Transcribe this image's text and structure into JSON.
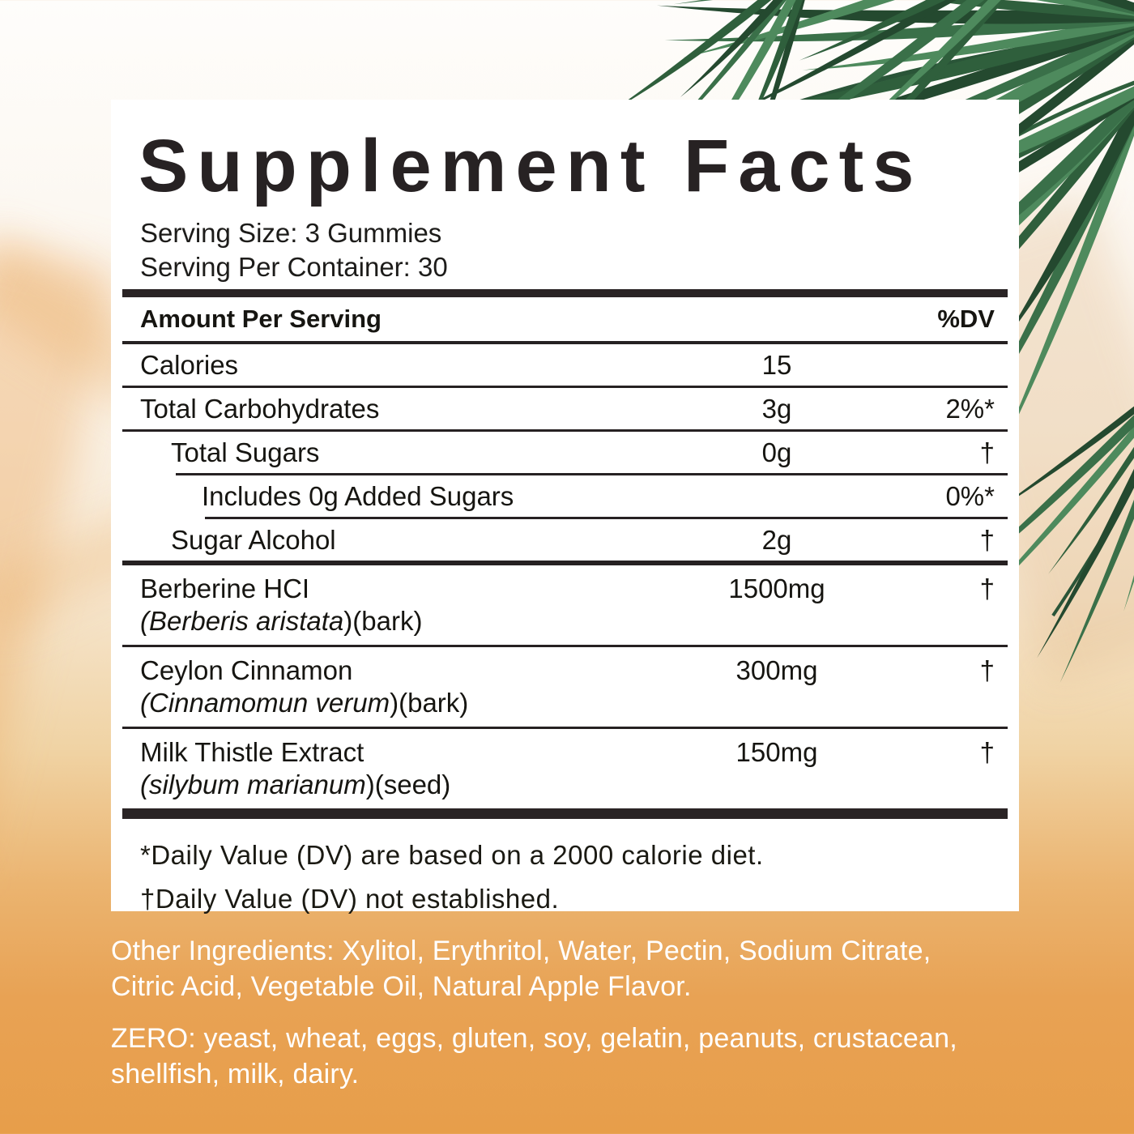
{
  "colors": {
    "background_orange": "#E79E4A",
    "background_cream": "#F6E6CF",
    "panel_white": "#FFFFFF",
    "rule_black": "#2A2425",
    "text_black": "#161511",
    "bottom_text_white": "#FFFFFF",
    "leaf_green_dark": "#24492F",
    "leaf_green_mid": "#2F5F3C",
    "leaf_green_light": "#4E8A5D"
  },
  "panel": {
    "title": "Supplement Facts",
    "serving_size": "Serving Size: 3 Gummies",
    "servings_per_container": "Serving Per Container: 30",
    "header": {
      "amount_label": "Amount Per Serving",
      "dv_label": "%DV"
    },
    "rows": [
      {
        "name": "Calories",
        "amount": "15",
        "dv": ""
      },
      {
        "name": "Total Carbohydrates",
        "amount": "3g",
        "dv": "2%*"
      },
      {
        "name": "Total Sugars",
        "amount": "0g",
        "dv": "†"
      },
      {
        "name": "Includes 0g Added Sugars",
        "amount": "",
        "dv": "0%*"
      },
      {
        "name": "Sugar Alcohol",
        "amount": "2g",
        "dv": "†"
      },
      {
        "name": "Berberine HCI",
        "latin_italic": "(Berberis aristata",
        "latin_plain": ")(bark)",
        "amount": "1500mg",
        "dv": "†"
      },
      {
        "name": "Ceylon Cinnamon",
        "latin_italic": "(Cinnamomun verum",
        "latin_plain": ")(bark)",
        "amount": "300mg",
        "dv": "†"
      },
      {
        "name": "Milk Thistle Extract",
        "latin_italic": "(silybum marianum",
        "latin_plain": ")(seed)",
        "amount": "150mg",
        "dv": "†"
      }
    ],
    "footnotes": {
      "dv_basis": "*Daily Value (DV) are based on a 2000 calorie diet.",
      "dv_not_established": "†Daily Value (DV) not established."
    }
  },
  "bottom": {
    "other_ingredients_line1": "Other Ingredients: Xylitol, Erythritol, Water, Pectin, Sodium Citrate,",
    "other_ingredients_line2": "Citric Acid, Vegetable Oil, Natural Apple Flavor.",
    "zero_line1": "ZERO: yeast, wheat, eggs, gluten, soy, gelatin, peanuts, crustacean,",
    "zero_line2": "shellfish, milk, dairy."
  }
}
